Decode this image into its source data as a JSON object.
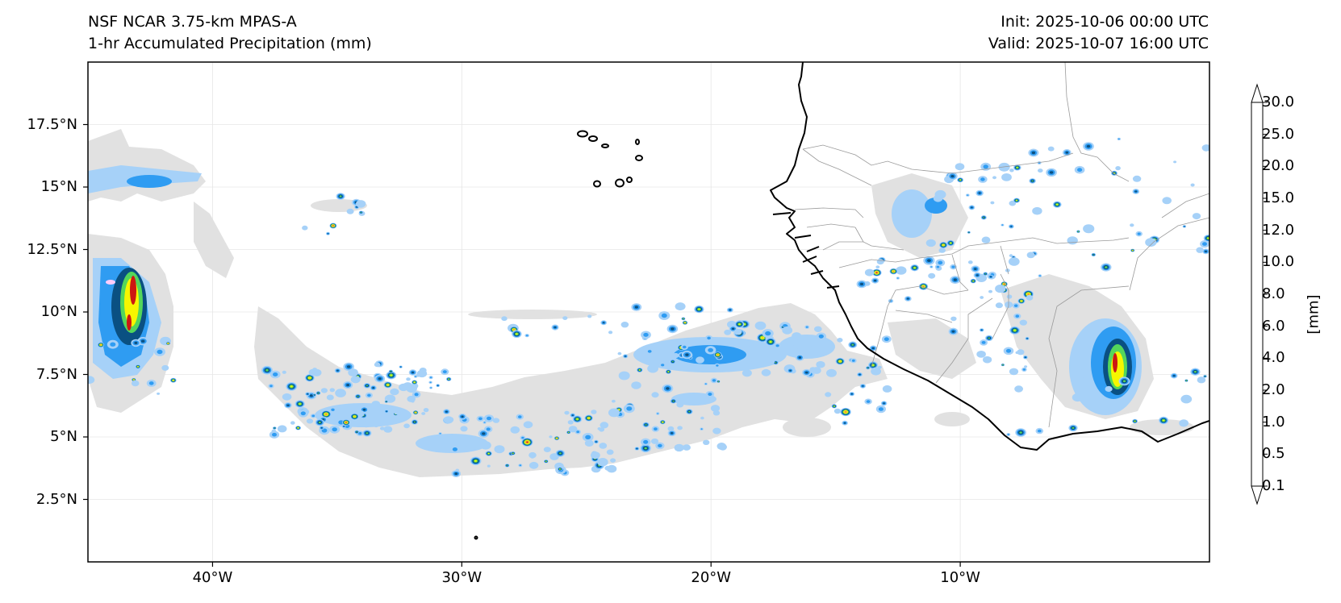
{
  "title": {
    "model": "NSF NCAR 3.75-km MPAS-A",
    "field": "1-hr Accumulated Precipitation (mm)",
    "init": "Init: 2025-10-06 00:00 UTC",
    "valid": "Valid: 2025-10-07 16:00 UTC"
  },
  "map": {
    "lon_range": [
      -45,
      0
    ],
    "lat_range": [
      0,
      20
    ],
    "lat_ticks": [
      {
        "value": 17.5,
        "label": "17.5°N"
      },
      {
        "value": 15,
        "label": "15°N"
      },
      {
        "value": 12.5,
        "label": "12.5°N"
      },
      {
        "value": 10,
        "label": "10°N"
      },
      {
        "value": 7.5,
        "label": "7.5°N"
      },
      {
        "value": 5,
        "label": "5°N"
      },
      {
        "value": 2.5,
        "label": "2.5°N"
      }
    ],
    "lon_ticks": [
      {
        "value": -40,
        "label": "40°W"
      },
      {
        "value": -30,
        "label": "30°W"
      },
      {
        "value": -20,
        "label": "20°W"
      },
      {
        "value": -10,
        "label": "10°W"
      }
    ],
    "coastline_color": "#000000",
    "border_color": "#9a9a9a",
    "gridline_color": "#e6e6e6"
  },
  "colorbar": {
    "unit_label": "[mm]",
    "extend": "both",
    "levels": [
      "0.1",
      "0.5",
      "1.0",
      "2.0",
      "4.0",
      "6.0",
      "8.0",
      "10.0",
      "12.0",
      "15.0",
      "20.0",
      "25.0",
      "30.0"
    ],
    "colors": [
      "#e1e1e1",
      "#a6d1f8",
      "#2f9cf2",
      "#0a5082",
      "#53d65b",
      "#f6f600",
      "#f6b83a",
      "#ee8f25",
      "#cc1712",
      "#8e0a08",
      "#b633b6",
      "#ffcdfc"
    ]
  }
}
